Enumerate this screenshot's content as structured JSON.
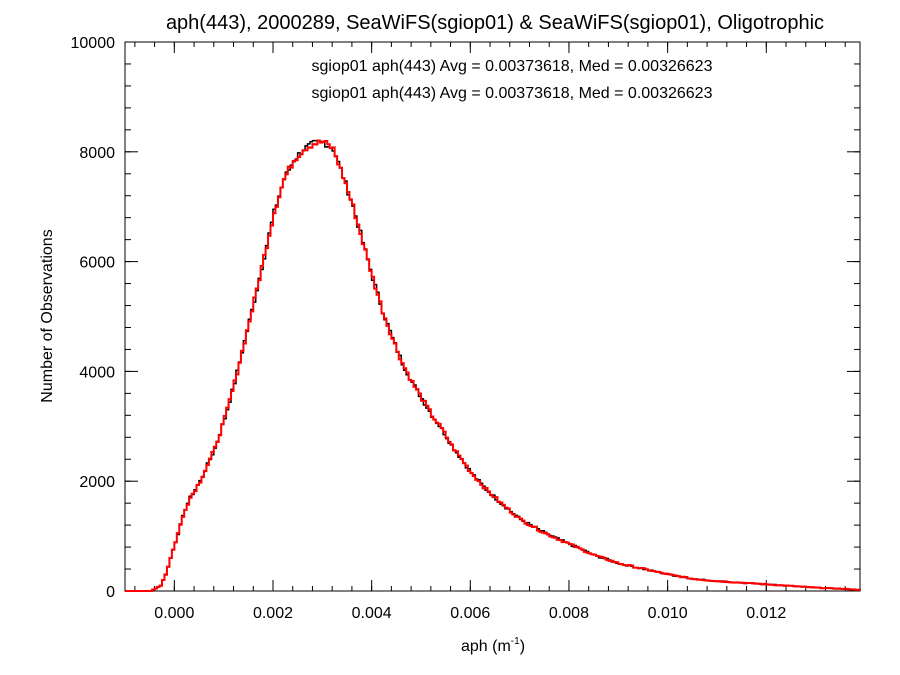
{
  "chart_data": {
    "type": "line",
    "title": "aph(443), 2000289, SeaWiFS(sgiop01) & SeaWiFS(sgiop01), Oligotrophic",
    "xlabel_main": "aph (m",
    "xlabel_sup": "-1",
    "xlabel_close": ")",
    "ylabel": "Number of Observations",
    "xlim": [
      -0.001,
      0.0139
    ],
    "ylim": [
      0,
      10000
    ],
    "x_ticks": [
      0.0,
      0.002,
      0.004,
      0.006,
      0.008,
      0.01,
      0.012
    ],
    "x_tick_labels": [
      "0.000",
      "0.002",
      "0.004",
      "0.006",
      "0.008",
      "0.010",
      "0.012"
    ],
    "y_ticks": [
      0,
      2000,
      4000,
      6000,
      8000,
      10000
    ],
    "y_tick_labels": [
      "0",
      "2000",
      "4000",
      "6000",
      "8000",
      "10000"
    ],
    "step": "histogram",
    "annotations": [
      {
        "text": "sgiop01 aph(443) Avg = 0.00373618, Med = 0.00326623",
        "color": "#000000"
      },
      {
        "text": "sgiop01 aph(443) Avg = 0.00373618, Med = 0.00326623",
        "color": "#ff0000"
      }
    ],
    "series": [
      {
        "color": "#000000",
        "x": [
          -0.001,
          -0.0005,
          -0.0003,
          -0.0002,
          -0.0001,
          0.0,
          0.0001,
          0.0002,
          0.0003,
          0.0004,
          0.0005,
          0.0006,
          0.0008,
          0.001,
          0.0012,
          0.0014,
          0.0016,
          0.0018,
          0.002,
          0.0022,
          0.0024,
          0.0026,
          0.0028,
          0.003,
          0.0032,
          0.0034,
          0.0036,
          0.0038,
          0.004,
          0.0042,
          0.0044,
          0.0046,
          0.0048,
          0.005,
          0.0052,
          0.0054,
          0.0056,
          0.0058,
          0.006,
          0.0063,
          0.0066,
          0.007,
          0.0075,
          0.008,
          0.0085,
          0.009,
          0.0095,
          0.01,
          0.0105,
          0.011,
          0.0115,
          0.012,
          0.0125,
          0.013,
          0.0135,
          0.0139
        ],
        "y": [
          0,
          0,
          100,
          300,
          600,
          900,
          1200,
          1500,
          1700,
          1850,
          2000,
          2200,
          2600,
          3150,
          3800,
          4550,
          5300,
          6100,
          6900,
          7500,
          7850,
          8050,
          8150,
          8180,
          8050,
          7550,
          7000,
          6350,
          5700,
          5100,
          4600,
          4150,
          3800,
          3500,
          3200,
          2950,
          2650,
          2400,
          2150,
          1850,
          1600,
          1300,
          1050,
          850,
          650,
          500,
          400,
          300,
          220,
          180,
          150,
          120,
          90,
          60,
          40,
          20
        ]
      },
      {
        "color": "#ff0000",
        "x": [
          -0.001,
          -0.0005,
          -0.0003,
          -0.0002,
          -0.0001,
          0.0,
          0.0001,
          0.0002,
          0.0003,
          0.0004,
          0.0005,
          0.0006,
          0.0008,
          0.001,
          0.0012,
          0.0014,
          0.0016,
          0.0018,
          0.002,
          0.0022,
          0.0024,
          0.0026,
          0.0028,
          0.003,
          0.0032,
          0.0034,
          0.0036,
          0.0038,
          0.004,
          0.0042,
          0.0044,
          0.0046,
          0.0048,
          0.005,
          0.0052,
          0.0054,
          0.0056,
          0.0058,
          0.006,
          0.0063,
          0.0066,
          0.007,
          0.0075,
          0.008,
          0.0085,
          0.009,
          0.0095,
          0.01,
          0.0105,
          0.011,
          0.0115,
          0.012,
          0.0125,
          0.013,
          0.0135,
          0.0139
        ],
        "y": [
          0,
          0,
          100,
          300,
          600,
          900,
          1200,
          1500,
          1700,
          1850,
          2000,
          2200,
          2600,
          3150,
          3800,
          4550,
          5300,
          6100,
          6900,
          7500,
          7850,
          8050,
          8150,
          8180,
          8050,
          7550,
          7000,
          6350,
          5700,
          5100,
          4600,
          4150,
          3800,
          3500,
          3200,
          2950,
          2650,
          2400,
          2150,
          1850,
          1600,
          1300,
          1050,
          850,
          650,
          500,
          400,
          300,
          220,
          180,
          150,
          120,
          90,
          60,
          40,
          20
        ]
      }
    ],
    "grid": false,
    "legend": "none"
  }
}
